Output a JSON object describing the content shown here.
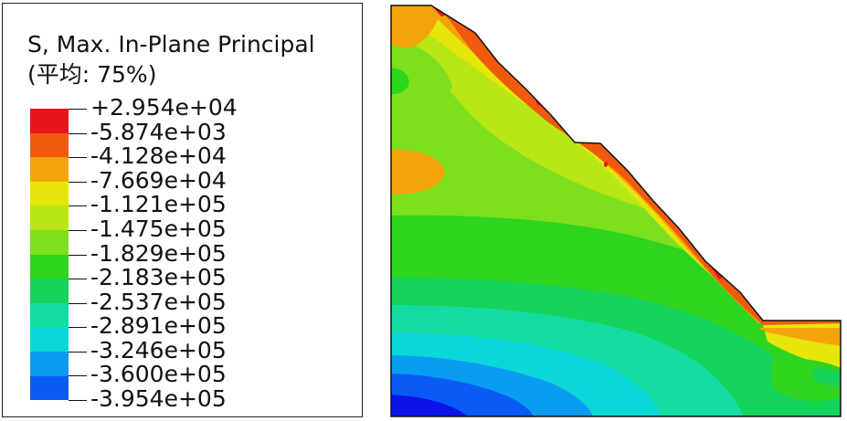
{
  "legend": {
    "title": "S, Max. In-Plane Principal",
    "subtitle": "(平均: 75%)",
    "levels": [
      {
        "label": "+2.954e+04",
        "color": "#e8141c"
      },
      {
        "label": "-5.874e+03",
        "color": "#f05a0c"
      },
      {
        "label": "-4.128e+04",
        "color": "#f5a30a"
      },
      {
        "label": "-7.669e+04",
        "color": "#e6e60a"
      },
      {
        "label": "-1.121e+05",
        "color": "#b8e614"
      },
      {
        "label": "-1.475e+05",
        "color": "#7de01e"
      },
      {
        "label": "-1.829e+05",
        "color": "#2ed41e"
      },
      {
        "label": "-2.183e+05",
        "color": "#14d25a"
      },
      {
        "label": "-2.537e+05",
        "color": "#14dca0"
      },
      {
        "label": "-2.891e+05",
        "color": "#0ad7d7"
      },
      {
        "label": "-3.246e+05",
        "color": "#0a9cf0"
      },
      {
        "label": "-3.600e+05",
        "color": "#0a5af5"
      },
      {
        "label": "-3.954e+05",
        "color": "#0a14e6"
      }
    ]
  }
}
